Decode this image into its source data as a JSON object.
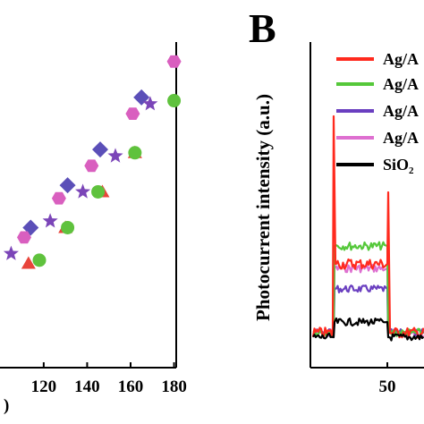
{
  "panel_label": "B",
  "chart_data": [
    {
      "type": "scatter",
      "panel": "A",
      "title": "",
      "xlabel": ")",
      "ylabel": "",
      "xlim": [
        104,
        181
      ],
      "ylim": [
        0,
        10
      ],
      "xticks": [
        "120",
        "140",
        "160",
        "180"
      ],
      "series": [
        {
          "marker": "diamond",
          "color": "#5b4fb8",
          "x": [
            114,
            131,
            146,
            165
          ],
          "y": [
            4.3,
            5.6,
            6.7,
            8.3
          ]
        },
        {
          "marker": "star",
          "color": "#7b45b8",
          "x": [
            105,
            123,
            138,
            153,
            169
          ],
          "y": [
            3.5,
            4.5,
            5.4,
            6.5,
            8.1
          ]
        },
        {
          "marker": "hexagon",
          "color": "#d95fbf",
          "x": [
            111,
            127,
            142,
            161,
            180
          ],
          "y": [
            4.0,
            5.2,
            6.2,
            7.8,
            9.4
          ]
        },
        {
          "marker": "triangle",
          "color": "#e8443a",
          "x": [
            113,
            130,
            147,
            162
          ],
          "y": [
            3.2,
            4.3,
            5.4,
            6.6
          ]
        },
        {
          "marker": "circle",
          "color": "#5fc23d",
          "x": [
            118,
            131,
            145,
            162,
            180
          ],
          "y": [
            3.3,
            4.3,
            5.4,
            6.6,
            8.2
          ]
        }
      ]
    },
    {
      "type": "line",
      "panel": "B",
      "title": "",
      "xlabel": "",
      "ylabel": "Photocurrent intensity (a.u.)",
      "xticks": [
        "50"
      ],
      "legend_position": "top-right",
      "series": [
        {
          "name": "Ag/A",
          "color": "#ff2a1e"
        },
        {
          "name": "Ag/A",
          "color": "#55c83a"
        },
        {
          "name": "Ag/A",
          "color": "#6a3fc0"
        },
        {
          "name": "Ag/A",
          "color": "#de6fd0"
        },
        {
          "name": "SiO",
          "subscript": "2",
          "color": "#000000"
        }
      ]
    }
  ]
}
